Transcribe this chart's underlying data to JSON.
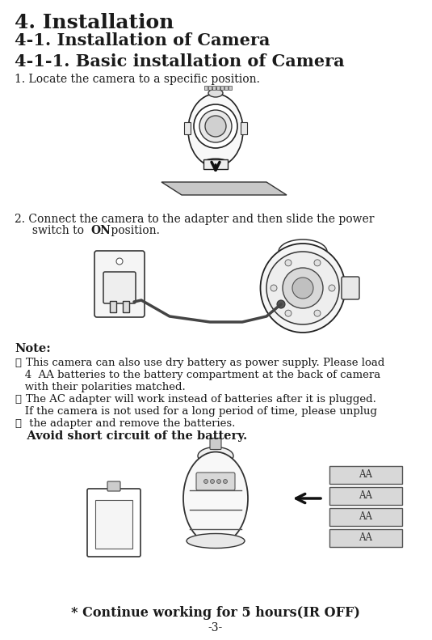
{
  "bg_color": "#ffffff",
  "text_color": "#1a1a1a",
  "title1": "4. Installation",
  "title2": "4-1. Installation of Camera",
  "title3": "4-1-1. Basic installation of Camera",
  "step1": "1. Locate the camera to a specific position.",
  "step2_line1": "2. Connect the camera to the adapter and then slide the power",
  "step2_line2a": "     switch to ",
  "step2_bold": "ON",
  "step2_line2b": " position.",
  "note_label": "Note:",
  "note1_circ": "①",
  "note1_text": "This camera can also use dry battery as power supply. Please load",
  "note1b": "   4  AA batteries to the battery compartment at the back of camera",
  "note1c": "   with their polarities matched.",
  "note2_circ": "②",
  "note2_text": "The AC adapter will work instead of batteries after it is plugged.",
  "note2b": "   If the camera is not used for a long period of time, please unplug",
  "note3_circ": "③",
  "note3_text": " the adapter and remove the batteries.",
  "note4": "   Avoid short circuit of the battery.",
  "footer": "* Continue working for 5 hours(IR OFF)",
  "page_num": "-3-"
}
